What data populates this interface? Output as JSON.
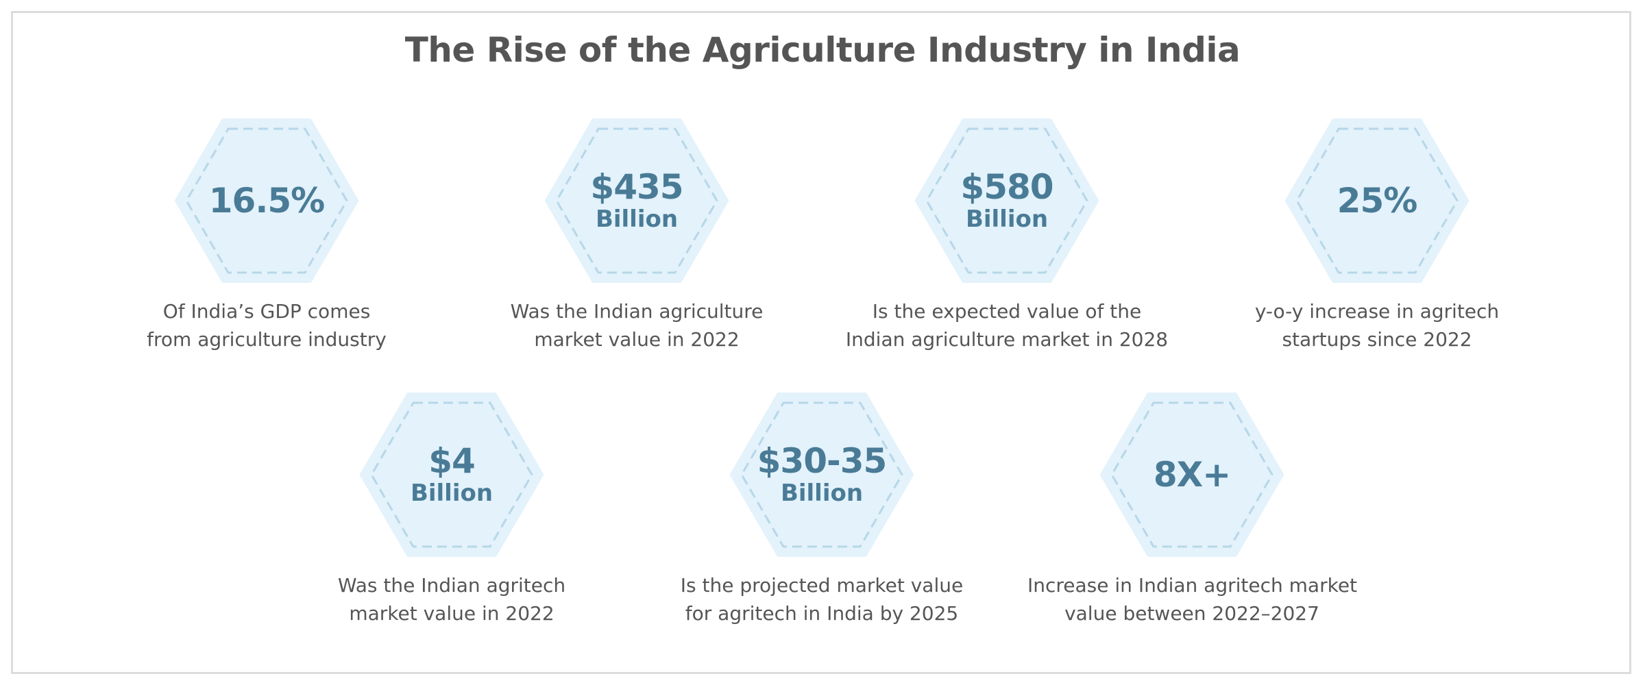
{
  "title": "The Rise of the Agriculture Industry in India",
  "colors": {
    "hex_fill": "#e3f2fb",
    "hex_outline": "#b7d7e8",
    "value_text": "#4a7b96",
    "caption_text": "#555555",
    "title_text": "#555555"
  },
  "stats": [
    {
      "value": "16.5%",
      "unit": "",
      "caption_line1": "Of India’s GDP comes",
      "caption_line2": "from agriculture industry"
    },
    {
      "value": "$435",
      "unit": "Billion",
      "caption_line1": "Was the Indian agriculture",
      "caption_line2": "market value in 2022"
    },
    {
      "value": "$580",
      "unit": "Billion",
      "caption_line1": "Is the expected value of the",
      "caption_line2": "Indian agriculture market in 2028"
    },
    {
      "value": "25%",
      "unit": "",
      "caption_line1": "y-o-y increase in agritech",
      "caption_line2": "startups since 2022"
    },
    {
      "value": "$4",
      "unit": "Billion",
      "caption_line1": "Was the Indian agritech",
      "caption_line2": "market value in 2022"
    },
    {
      "value": "$30-35",
      "unit": "Billion",
      "caption_line1": "Is the projected market value",
      "caption_line2": "for agritech in India by 2025"
    },
    {
      "value": "8X+",
      "unit": "",
      "caption_line1": "Increase in Indian agritech market",
      "caption_line2": "value between 2022–2027"
    }
  ]
}
